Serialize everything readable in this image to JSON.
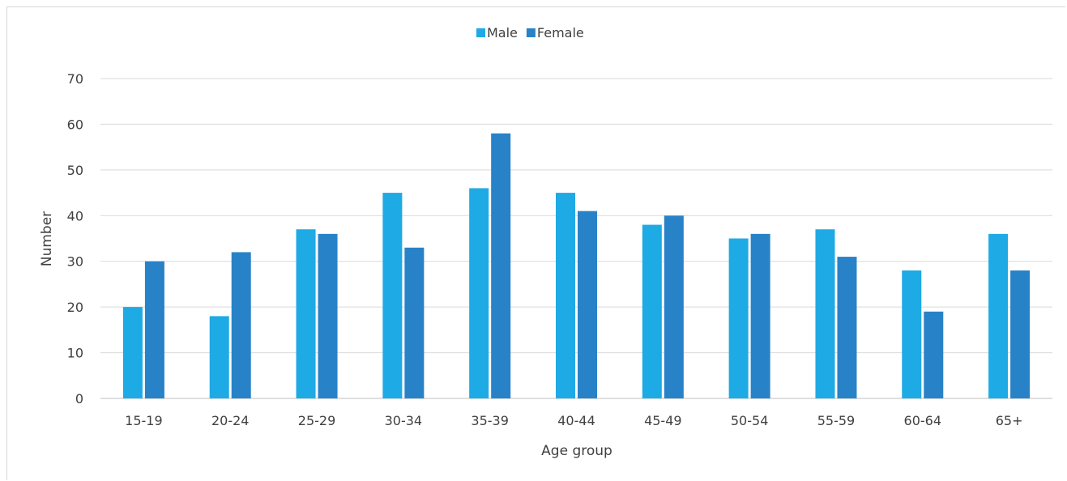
{
  "chart_data": {
    "type": "bar",
    "title": "",
    "xlabel": "Age group",
    "ylabel": "Number",
    "ylim": [
      0,
      70
    ],
    "yticks": [
      0,
      10,
      20,
      30,
      40,
      50,
      60,
      70
    ],
    "grid": true,
    "legend_position": "top",
    "categories": [
      "15-19",
      "20-24",
      "25-29",
      "30-34",
      "35-39",
      "40-44",
      "45-49",
      "50-54",
      "55-59",
      "60-64",
      "65+"
    ],
    "series": [
      {
        "name": "Male",
        "color": "#1eaae5",
        "values": [
          20,
          18,
          37,
          45,
          46,
          45,
          38,
          35,
          37,
          28,
          36
        ]
      },
      {
        "name": "Female",
        "color": "#2882c8",
        "values": [
          30,
          32,
          36,
          33,
          58,
          41,
          40,
          36,
          31,
          19,
          28
        ]
      }
    ]
  }
}
